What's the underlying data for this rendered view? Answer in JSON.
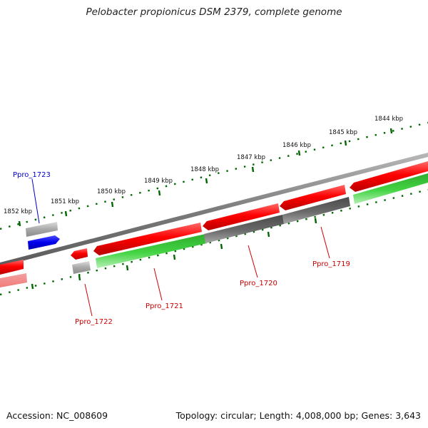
{
  "title": "Pelobacter propionicus DSM 2379, complete genome",
  "footer": {
    "accession": "Accession: NC_008609",
    "stats": "Topology: circular; Length: 4,008,000 bp; Genes: 3,643"
  },
  "colors": {
    "forward_gene": "#ff0000",
    "reverse_gene": "#e60000",
    "cds_green": "#33cc33",
    "other_gray": "#666666",
    "highlight_blue": "#0000ee",
    "tick_green": "#006600",
    "backbone": "#8a8a8a"
  },
  "scale_ticks": [
    "1844 kbp",
    "1845 kbp",
    "1846 kbp",
    "1847 kbp",
    "1848 kbp",
    "1849 kbp",
    "1850 kbp",
    "1851 kbp",
    "1852 kbp"
  ],
  "gene_labels": [
    {
      "name": "Ppro_1723",
      "color": "#0000cc"
    },
    {
      "name": "Ppro_1722",
      "color": "#cc0000"
    },
    {
      "name": "Ppro_1721",
      "color": "#cc0000"
    },
    {
      "name": "Ppro_1720",
      "color": "#cc0000"
    },
    {
      "name": "Ppro_1719",
      "color": "#cc0000"
    }
  ]
}
